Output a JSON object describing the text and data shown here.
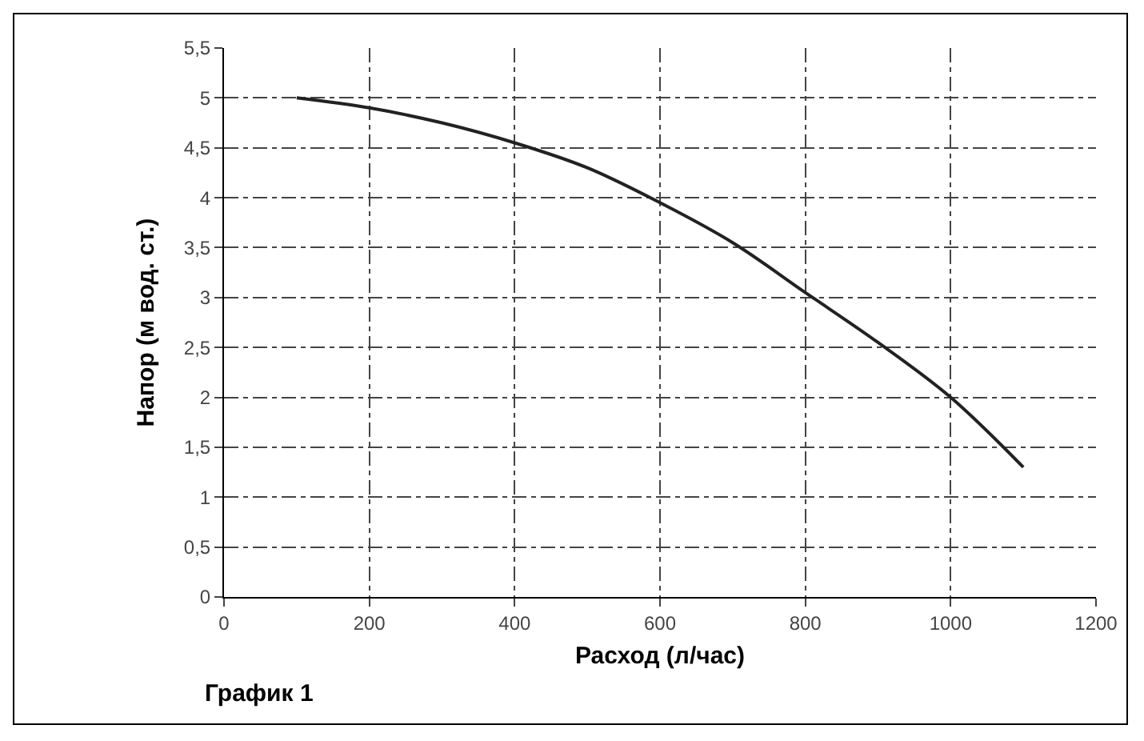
{
  "chart_data": {
    "type": "line",
    "xlabel": "Расход (л/час)",
    "ylabel": "Напор (м вод. ст.)",
    "annotations": [
      "График 1"
    ],
    "x": [
      100,
      200,
      300,
      400,
      500,
      600,
      700,
      800,
      900,
      1000,
      1100
    ],
    "series": [
      {
        "color": "#222222",
        "values": [
          5.0,
          4.9,
          4.75,
          4.55,
          4.3,
          3.95,
          3.55,
          3.05,
          2.55,
          2.0,
          1.3
        ]
      }
    ],
    "xlim": [
      0,
      1200
    ],
    "xticks": [
      0,
      200,
      400,
      600,
      800,
      1000,
      1200
    ],
    "ylim": [
      0,
      5.5
    ],
    "yticks": [
      0,
      {
        "value": 0.5,
        "label": "0,5"
      },
      1,
      {
        "value": 1.5,
        "label": "1,5"
      },
      2,
      {
        "value": 2.5,
        "label": "2,5"
      },
      3,
      {
        "value": 3.5,
        "label": "3,5"
      },
      4,
      {
        "value": 4.5,
        "label": "4,5"
      },
      5,
      {
        "value": 5.5,
        "label": "5,5"
      }
    ],
    "grid": true,
    "marker": "none",
    "line_style": "solid"
  }
}
